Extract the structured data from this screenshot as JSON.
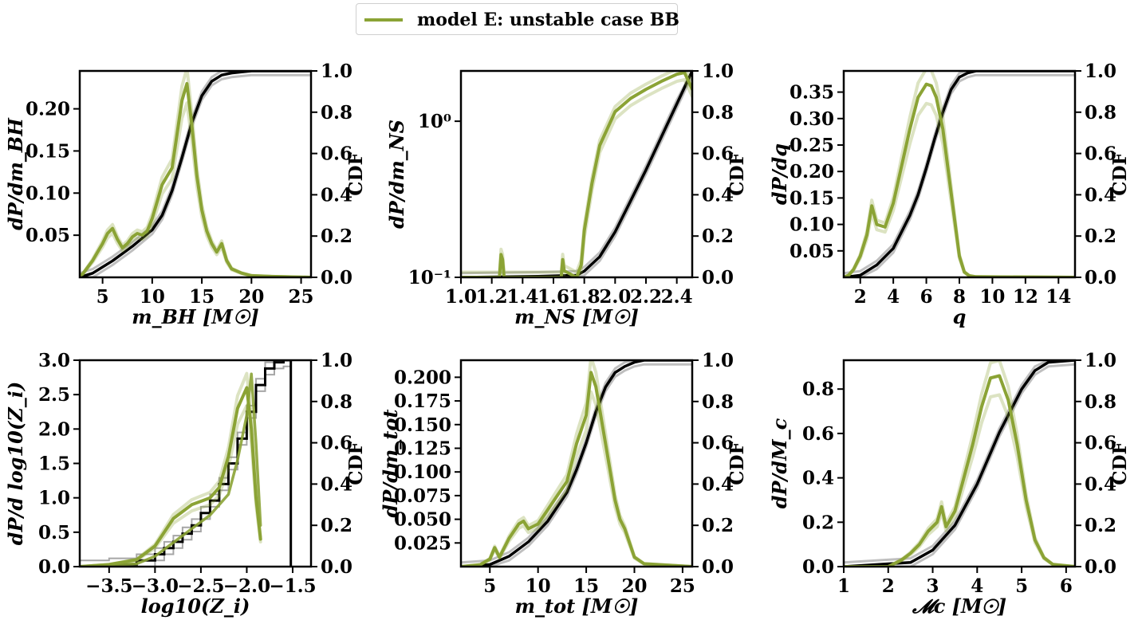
{
  "legend": {
    "label": "model E: unstable case BB",
    "color": "#8ba335"
  },
  "colors": {
    "model": "#8ba335",
    "cdf": "#000000"
  },
  "chart_data": [
    {
      "type": "line",
      "xlabel": "m_BH [M☉]",
      "ylabel": "dP/dm_BH",
      "y2label": "CDF",
      "xlim": [
        2.7,
        26
      ],
      "ylim": [
        0,
        0.245
      ],
      "y2lim": [
        0,
        1
      ],
      "xticks": [
        5,
        10,
        15,
        20,
        25
      ],
      "xtick_labels": [
        "5",
        "10",
        "15",
        "20",
        "25"
      ],
      "yticks": [
        0.05,
        0.1,
        0.15,
        0.2
      ],
      "ytick_labels": [
        "0.05",
        "0.10",
        "0.15",
        "0.20"
      ],
      "pdf": {
        "x": [
          2.7,
          3,
          3.5,
          4,
          4.5,
          5,
          5.5,
          6,
          6.5,
          7,
          7.5,
          8,
          8.5,
          9,
          9.5,
          10,
          10.5,
          11,
          11.5,
          12,
          12.5,
          13,
          13.5,
          14,
          14.5,
          15,
          15.5,
          16,
          16.5,
          17,
          17.5,
          18,
          19,
          20,
          22,
          26
        ],
        "y": [
          0.002,
          0.004,
          0.012,
          0.02,
          0.03,
          0.04,
          0.052,
          0.058,
          0.045,
          0.035,
          0.04,
          0.048,
          0.052,
          0.05,
          0.055,
          0.07,
          0.09,
          0.11,
          0.12,
          0.13,
          0.17,
          0.21,
          0.23,
          0.18,
          0.12,
          0.08,
          0.055,
          0.04,
          0.03,
          0.04,
          0.02,
          0.01,
          0.005,
          0.002,
          0.001,
          0
        ]
      },
      "cdf": {
        "x": [
          2.7,
          4,
          6,
          8,
          10,
          11,
          12,
          13,
          14,
          15,
          16,
          17,
          18,
          19,
          20,
          26
        ],
        "y": [
          0,
          0.02,
          0.08,
          0.15,
          0.23,
          0.3,
          0.42,
          0.58,
          0.75,
          0.88,
          0.95,
          0.98,
          0.99,
          0.995,
          1,
          1
        ]
      }
    },
    {
      "type": "line",
      "yscale": "log",
      "xlabel": "m_NS [M☉]",
      "ylabel": "dP/dm_NS",
      "y2label": "CDF",
      "xlim": [
        1.0,
        2.5
      ],
      "ylim": [
        0.1,
        2.1
      ],
      "y2lim": [
        0,
        1
      ],
      "xticks": [
        1.0,
        1.2,
        1.4,
        1.6,
        1.8,
        2.0,
        2.2,
        2.4
      ],
      "xtick_labels": [
        "1.0",
        "1.2",
        "1.4",
        "1.6",
        "1.8",
        "2.0",
        "2.2",
        "2.4"
      ],
      "yticks": [
        0.1,
        1.0
      ],
      "ytick_labels": [
        "10⁻¹",
        "10⁰"
      ],
      "pdf": {
        "x": [
          1.0,
          1.25,
          1.26,
          1.27,
          1.28,
          1.4,
          1.6,
          1.65,
          1.66,
          1.67,
          1.75,
          1.78,
          1.8,
          1.85,
          1.9,
          2.0,
          2.1,
          2.2,
          2.3,
          2.4,
          2.45,
          2.5
        ],
        "y": [
          0.1,
          0.1,
          0.14,
          0.13,
          0.1,
          0.1,
          0.1,
          0.1,
          0.13,
          0.11,
          0.1,
          0.12,
          0.2,
          0.4,
          0.7,
          1.15,
          1.4,
          1.6,
          1.8,
          2.0,
          2.05,
          1.6
        ]
      },
      "cdf": {
        "x": [
          1.0,
          1.5,
          1.75,
          1.8,
          1.9,
          2.0,
          2.1,
          2.2,
          2.3,
          2.4,
          2.5
        ],
        "y": [
          0,
          0.005,
          0.01,
          0.03,
          0.1,
          0.22,
          0.37,
          0.52,
          0.68,
          0.84,
          1.0
        ]
      }
    },
    {
      "type": "line",
      "xlabel": "q",
      "ylabel": "dP/dq",
      "y2label": "CDF",
      "xlim": [
        1,
        15
      ],
      "ylim": [
        0,
        0.39
      ],
      "y2lim": [
        0,
        1
      ],
      "xticks": [
        2,
        4,
        6,
        8,
        10,
        12,
        14
      ],
      "xtick_labels": [
        "2",
        "4",
        "6",
        "8",
        "10",
        "12",
        "14"
      ],
      "yticks": [
        0.05,
        0.1,
        0.15,
        0.2,
        0.25,
        0.3,
        0.35
      ],
      "ytick_labels": [
        "0.05",
        "0.10",
        "0.15",
        "0.20",
        "0.25",
        "0.30",
        "0.35"
      ],
      "pdf": {
        "x": [
          1,
          1.3,
          1.6,
          2,
          2.4,
          2.7,
          3,
          3.5,
          4,
          4.5,
          5,
          5.5,
          6,
          6.3,
          6.6,
          7,
          7.5,
          8,
          8.3,
          8.6,
          9,
          15
        ],
        "y": [
          0,
          0.004,
          0.015,
          0.04,
          0.08,
          0.135,
          0.1,
          0.095,
          0.14,
          0.21,
          0.28,
          0.34,
          0.365,
          0.362,
          0.34,
          0.28,
          0.16,
          0.04,
          0.01,
          0.003,
          0.001,
          0
        ]
      },
      "cdf": {
        "x": [
          1,
          2,
          3,
          4,
          5,
          5.5,
          6,
          6.5,
          7,
          7.5,
          8,
          8.5,
          9,
          15
        ],
        "y": [
          0,
          0.01,
          0.06,
          0.14,
          0.3,
          0.4,
          0.53,
          0.67,
          0.8,
          0.91,
          0.97,
          0.99,
          1,
          1
        ]
      }
    },
    {
      "type": "line",
      "xlabel": "log10(Z_i)",
      "ylabel": "dP/d log10(Z_i)",
      "y2label": "CDF",
      "xlim": [
        -3.82,
        -1.3
      ],
      "ylim": [
        0,
        3.0
      ],
      "y2lim": [
        0,
        1
      ],
      "xticks": [
        -3.5,
        -3.0,
        -2.5,
        -2.0,
        -1.5
      ],
      "xtick_labels": [
        "−3.5",
        "−3.0",
        "−2.5",
        "−2.0",
        "−1.5"
      ],
      "yticks": [
        0,
        0.5,
        1.0,
        1.5,
        2.0,
        2.5,
        3.0
      ],
      "ytick_labels": [
        "0.0",
        "0.5",
        "1.0",
        "1.5",
        "2.0",
        "2.5",
        "3.0"
      ],
      "pdf": {
        "x": [
          -3.82,
          -3.5,
          -3.2,
          -3.0,
          -2.8,
          -2.6,
          -2.4,
          -2.3,
          -2.2,
          -2.1,
          -2.0,
          -1.95,
          -1.9,
          -1.85
        ],
        "y": [
          0,
          0.03,
          0.1,
          0.3,
          0.7,
          0.9,
          1.0,
          1.15,
          1.6,
          2.3,
          2.6,
          2.0,
          1.0,
          0.4
        ]
      },
      "pdf_alt": {
        "x": [
          -3.82,
          -3.2,
          -3.0,
          -2.8,
          -2.6,
          -2.4,
          -2.2,
          -2.1,
          -2.0,
          -1.95,
          -1.9,
          -1.85
        ],
        "y": [
          0,
          0.04,
          0.15,
          0.35,
          0.55,
          0.75,
          1.05,
          1.55,
          2.2,
          2.8,
          1.8,
          0.6
        ]
      },
      "cdf_steps": {
        "x": [
          -3.82,
          -3.5,
          -3.2,
          -3.0,
          -2.9,
          -2.8,
          -2.7,
          -2.6,
          -2.5,
          -2.4,
          -2.3,
          -2.2,
          -2.1,
          -2.0,
          -1.9,
          -1.8,
          -1.7,
          -1.6,
          -1.52
        ],
        "y": [
          0,
          0.01,
          0.03,
          0.06,
          0.09,
          0.12,
          0.16,
          0.2,
          0.26,
          0.32,
          0.4,
          0.5,
          0.62,
          0.75,
          0.88,
          0.96,
          0.99,
          1.0,
          1.0
        ]
      },
      "vline_x": -1.52
    },
    {
      "type": "line",
      "xlabel": "m_tot [M☉]",
      "ylabel": "dP/dm_tot",
      "y2label": "CDF",
      "xlim": [
        2,
        26
      ],
      "ylim": [
        0,
        0.218
      ],
      "y2lim": [
        0,
        1
      ],
      "xticks": [
        5,
        10,
        15,
        20,
        25
      ],
      "xtick_labels": [
        "5",
        "10",
        "15",
        "20",
        "25"
      ],
      "yticks": [
        0.025,
        0.05,
        0.075,
        0.1,
        0.125,
        0.15,
        0.175,
        0.2
      ],
      "ytick_labels": [
        "0.025",
        "0.050",
        "0.075",
        "0.100",
        "0.125",
        "0.150",
        "0.175",
        "0.200"
      ],
      "pdf": {
        "x": [
          2,
          4,
          5,
          5.5,
          6,
          7,
          8,
          8.5,
          9,
          10,
          11,
          12,
          13,
          14,
          15,
          15.5,
          16,
          17,
          18,
          18.5,
          19,
          20,
          21,
          26
        ],
        "y": [
          0,
          0.002,
          0.008,
          0.02,
          0.01,
          0.03,
          0.045,
          0.048,
          0.04,
          0.045,
          0.06,
          0.075,
          0.09,
          0.13,
          0.16,
          0.205,
          0.19,
          0.13,
          0.07,
          0.05,
          0.04,
          0.01,
          0.003,
          0
        ]
      },
      "cdf": {
        "x": [
          2,
          5,
          7,
          9,
          11,
          13,
          14,
          15,
          16,
          17,
          18,
          19,
          20,
          21,
          26
        ],
        "y": [
          0,
          0.01,
          0.05,
          0.12,
          0.22,
          0.36,
          0.47,
          0.6,
          0.75,
          0.87,
          0.94,
          0.97,
          0.99,
          1,
          1
        ]
      }
    },
    {
      "type": "line",
      "xlabel": "𝓜c [M☉]",
      "ylabel": "dP/dM_c",
      "y2label": "CDF",
      "xlim": [
        1,
        6.2
      ],
      "ylim": [
        0,
        0.93
      ],
      "y2lim": [
        0,
        1
      ],
      "xticks": [
        1,
        2,
        3,
        4,
        5,
        6
      ],
      "xtick_labels": [
        "1",
        "2",
        "3",
        "4",
        "5",
        "6"
      ],
      "yticks": [
        0,
        0.2,
        0.4,
        0.6,
        0.8
      ],
      "ytick_labels": [
        "0.0",
        "0.2",
        "0.4",
        "0.6",
        "0.8"
      ],
      "pdf": {
        "x": [
          1,
          2,
          2.3,
          2.5,
          2.7,
          2.9,
          3.1,
          3.2,
          3.3,
          3.5,
          3.7,
          3.9,
          4.1,
          4.3,
          4.5,
          4.7,
          4.9,
          5.1,
          5.3,
          5.5,
          5.7,
          6.2
        ],
        "y": [
          0,
          0,
          0.03,
          0.06,
          0.1,
          0.16,
          0.2,
          0.27,
          0.18,
          0.25,
          0.4,
          0.55,
          0.72,
          0.85,
          0.86,
          0.75,
          0.55,
          0.3,
          0.12,
          0.04,
          0.01,
          0
        ]
      },
      "cdf": {
        "x": [
          1,
          2.5,
          3,
          3.5,
          4,
          4.5,
          5,
          5.3,
          5.6,
          6.2
        ],
        "y": [
          0,
          0.02,
          0.08,
          0.2,
          0.4,
          0.65,
          0.86,
          0.95,
          0.99,
          1
        ]
      }
    }
  ]
}
